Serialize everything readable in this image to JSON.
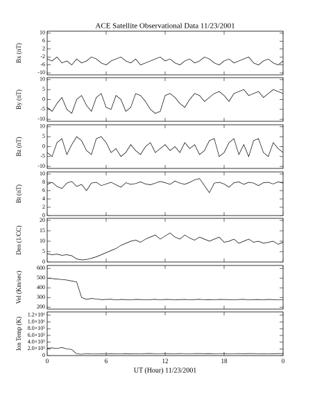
{
  "chart_data": [
    {
      "type": "line",
      "title": "ACE Satellite Observational Data  11/23/2001",
      "ylabel": "Bx (nT)",
      "ylim": [
        -11,
        11
      ],
      "yticks": [
        -10,
        -6,
        -2,
        2,
        6,
        10
      ],
      "values": [
        -3,
        -4,
        -2,
        -5,
        -4,
        -6,
        -3,
        -5,
        -4,
        -2,
        -3,
        -5,
        -6,
        -4,
        -3,
        -2,
        -4,
        -5,
        -3,
        -6,
        -5,
        -4,
        -3,
        -2,
        -4,
        -3,
        -5,
        -6,
        -4,
        -3,
        -5,
        -4,
        -2,
        -3,
        -5,
        -6,
        -4,
        -3,
        -5,
        -4,
        -3,
        -2,
        -5,
        -6,
        -4,
        -3,
        -5,
        -6,
        -4
      ]
    },
    {
      "type": "line",
      "ylabel": "By (nT)",
      "ylim": [
        -11,
        11
      ],
      "yticks": [
        -10,
        -5,
        0,
        5,
        10
      ],
      "values": [
        -4,
        -6,
        -2,
        1,
        -5,
        -7,
        0,
        2,
        -3,
        -6,
        1,
        3,
        -4,
        -5,
        2,
        0,
        -6,
        -4,
        3,
        2,
        -1,
        -5,
        -7,
        -6,
        2,
        3,
        1,
        -2,
        -4,
        0,
        3,
        2,
        -1,
        1,
        3,
        4,
        2,
        -1,
        3,
        4,
        5,
        2,
        3,
        4,
        1,
        3,
        5,
        4,
        3
      ]
    },
    {
      "type": "line",
      "ylabel": "Bz (nT)",
      "ylim": [
        -11,
        11
      ],
      "yticks": [
        -10,
        -5,
        0,
        5,
        10
      ],
      "values": [
        -3,
        -5,
        2,
        4,
        -4,
        1,
        5,
        3,
        -2,
        -4,
        4,
        5,
        2,
        -3,
        -1,
        -5,
        -3,
        1,
        -2,
        -4,
        0,
        2,
        -3,
        -1,
        1,
        -2,
        0,
        -3,
        2,
        -1,
        1,
        -4,
        -2,
        3,
        4,
        -5,
        -3,
        2,
        4,
        -4,
        1,
        -5,
        3,
        4,
        -3,
        -5,
        2,
        -1,
        -3
      ]
    },
    {
      "type": "line",
      "ylabel": "Bt (nT)",
      "ylim": [
        0,
        10.5
      ],
      "yticks": [
        0,
        2,
        4,
        6,
        8,
        10
      ],
      "values": [
        7.5,
        8,
        7,
        6.5,
        7.8,
        8.2,
        7,
        7.5,
        6,
        7.8,
        8,
        7.2,
        7.6,
        8,
        7.4,
        6.8,
        7.9,
        7.5,
        7.7,
        8.1,
        7.6,
        7.4,
        7.8,
        8.2,
        7.9,
        7.5,
        8.3,
        7.8,
        7.5,
        8,
        8.6,
        8.9,
        7.2,
        5.5,
        7.8,
        8,
        7.6,
        6.8,
        7.9,
        8.1,
        7.5,
        8,
        7.8,
        7.2,
        7.9,
        8,
        7.6,
        8.1,
        7.8
      ]
    },
    {
      "type": "line",
      "ylabel": "Den (1/CC)",
      "ylim": [
        0,
        21
      ],
      "yticks": [
        0,
        5,
        10,
        15,
        20
      ],
      "values": [
        4,
        3.5,
        3.8,
        3.2,
        3.5,
        3.0,
        1.5,
        1,
        1.2,
        1.8,
        2.5,
        3.5,
        4.5,
        5.5,
        6.5,
        8,
        9,
        10,
        10.5,
        9.5,
        11,
        12,
        13,
        11,
        12.5,
        14,
        12,
        11,
        13,
        11.5,
        10.5,
        12,
        11,
        10,
        11,
        12,
        9.5,
        10,
        11,
        9,
        10,
        11,
        9.5,
        10,
        9,
        9.5,
        10,
        8.5,
        9.5
      ]
    },
    {
      "type": "line",
      "ylabel": "Vel (Km/sec)",
      "ylim": [
        180,
        630
      ],
      "yticks": [
        200,
        300,
        400,
        500,
        600
      ],
      "values": [
        500,
        495,
        490,
        485,
        480,
        470,
        460,
        300,
        280,
        290,
        285,
        278,
        280,
        282,
        275,
        280,
        278,
        276,
        280,
        279,
        277,
        278,
        281,
        276,
        280,
        279,
        277,
        278,
        280,
        276,
        279,
        281,
        277,
        278,
        276,
        280,
        279,
        278,
        277,
        279,
        281,
        276,
        278,
        279,
        277,
        280,
        278,
        276,
        277
      ]
    },
    {
      "type": "line",
      "ylabel": "Ion Temp (K)",
      "ylim": [
        0,
        1300000
      ],
      "yticks": [
        0,
        {
          "value": 200000,
          "label": "2.0×10⁵"
        },
        {
          "value": 400000,
          "label": "4.0×10⁵"
        },
        {
          "value": 600000,
          "label": "6.0×10⁵"
        },
        {
          "value": 800000,
          "label": "8.0×10⁵"
        },
        {
          "value": 1000000,
          "label": "1.0×10⁶"
        },
        {
          "value": 1200000,
          "label": "1.2×10⁶"
        }
      ],
      "values": [
        220000,
        230000,
        210000,
        240000,
        200000,
        180000,
        50000,
        40000,
        60000,
        50000,
        45000,
        55000,
        50000,
        60000,
        50000,
        55000,
        60000,
        52000,
        58000,
        55000,
        60000,
        62000,
        55000,
        58000,
        60000,
        57000,
        55000,
        60000,
        58000,
        56000,
        61000,
        59000,
        57000,
        60000,
        55000,
        58000,
        60000,
        56000,
        58000,
        61000,
        57000,
        59000,
        60000,
        56000,
        58000,
        55000,
        57000,
        59000,
        60000
      ],
      "x": [
        0,
        0.5,
        1,
        1.5,
        2,
        2.5,
        3,
        3.5,
        4,
        4.5,
        5,
        5.5,
        6,
        6.5,
        7,
        7.5,
        8,
        8.5,
        9,
        9.5,
        10,
        10.5,
        11,
        11.5,
        12,
        12.5,
        13,
        13.5,
        14,
        14.5,
        15,
        15.5,
        16,
        16.5,
        17,
        17.5,
        18,
        18.5,
        19,
        19.5,
        20,
        20.5,
        21,
        21.5,
        22,
        22.5,
        23,
        23.5,
        24
      ],
      "xlim": [
        0,
        24
      ],
      "xticks": [
        0,
        6,
        12,
        18,
        {
          "value": 24,
          "label": "0"
        }
      ],
      "xlabel": "UT (Hour)  11/23/2001"
    }
  ]
}
